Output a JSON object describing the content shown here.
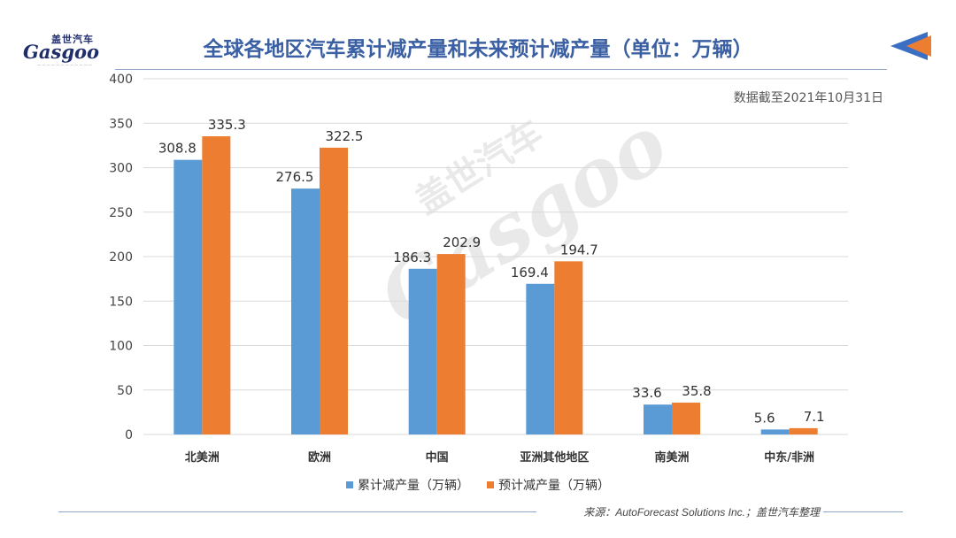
{
  "header": {
    "title": "全球各地区汽车累计减产量和未来预计减产量（单位：万辆）",
    "logo_cn": "盖世汽车",
    "logo_en": "Gasgoo"
  },
  "note": "数据截至2021年10月31日",
  "footer": {
    "source_prefix": "来源：",
    "source_en": "AutoForecast Solutions Inc.",
    "source_suffix": "；盖世汽车整理"
  },
  "watermark": {
    "cn": "盖世汽车",
    "en": "Gasgoo"
  },
  "colors": {
    "series_a": "#5b9bd5",
    "series_b": "#ed7d31",
    "title": "#3a5fa3",
    "grid": "#d9d9d9"
  },
  "chart_data": {
    "type": "bar",
    "title": "全球各地区汽车累计减产量和未来预计减产量（单位：万辆）",
    "categories": [
      "北美洲",
      "欧洲",
      "中国",
      "亚洲其他地区",
      "南美洲",
      "中东/非洲"
    ],
    "series": [
      {
        "name": "累计减产量（万辆）",
        "values": [
          308.8,
          276.5,
          186.3,
          169.4,
          33.6,
          5.6
        ]
      },
      {
        "name": "预计减产量（万辆）",
        "values": [
          335.3,
          322.5,
          202.9,
          194.7,
          35.8,
          7.1
        ]
      }
    ],
    "ylim": [
      0,
      400
    ],
    "yticks": [
      0,
      50,
      100,
      150,
      200,
      250,
      300,
      350,
      400
    ],
    "grid": true,
    "legend": "bottom",
    "data_labels": true
  }
}
